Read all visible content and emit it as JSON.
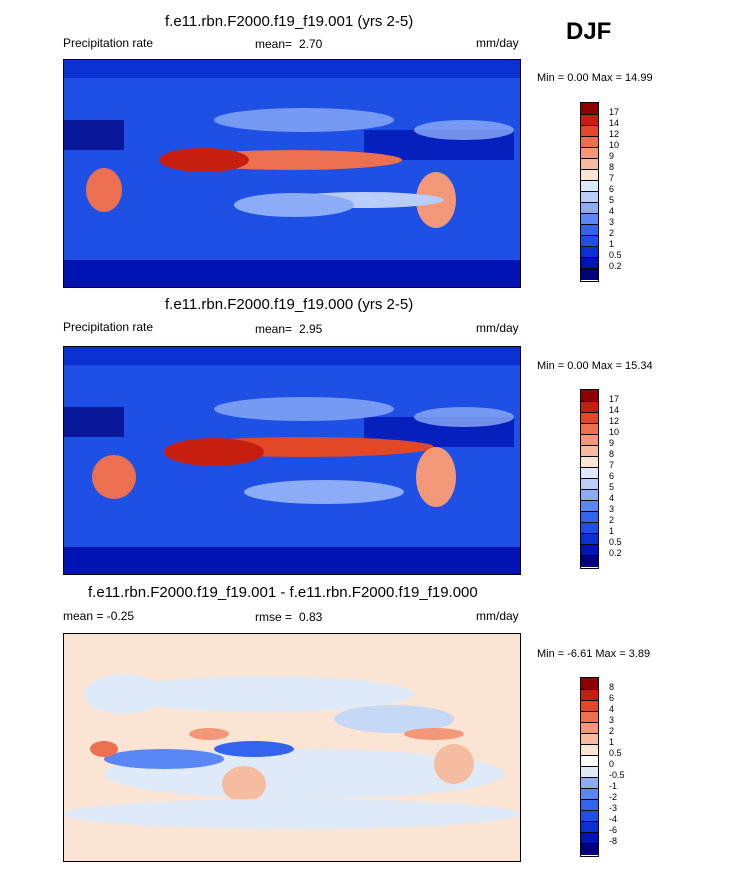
{
  "season": "DJF",
  "panels": [
    {
      "title": "f.e11.rbn.F2000.f19_f19.001 (yrs 2-5)",
      "left_label": "Precipitation rate",
      "mean_label": "mean=",
      "mean_value": "2.70",
      "units": "mm/day",
      "minmax": "Min =   0.00 Max =  14.99",
      "colorbar_labels": [
        "17",
        "14",
        "12",
        "10",
        "9",
        "8",
        "7",
        "6",
        "5",
        "4",
        "3",
        "2",
        "1",
        "0.5",
        "0.2"
      ]
    },
    {
      "title": "f.e11.rbn.F2000.f19_f19.000 (yrs 2-5)",
      "left_label": "Precipitation rate",
      "mean_label": "mean=",
      "mean_value": "2.95",
      "units": "mm/day",
      "minmax": "Min =   0.00 Max =  15.34",
      "colorbar_labels": [
        "17",
        "14",
        "12",
        "10",
        "9",
        "8",
        "7",
        "6",
        "5",
        "4",
        "3",
        "2",
        "1",
        "0.5",
        "0.2"
      ]
    },
    {
      "title": "f.e11.rbn.F2000.f19_f19.001 - f.e11.rbn.F2000.f19_f19.000",
      "left_label": "mean =  -0.25",
      "mean_label": "rmse =",
      "mean_value": "0.83",
      "units": "mm/day",
      "minmax": "Min =  -6.61 Max =   3.89",
      "colorbar_labels": [
        "8",
        "6",
        "4",
        "3",
        "2",
        "1",
        "0.5",
        "0",
        "-0.5",
        "-1",
        "-2",
        "-3",
        "-4",
        "-6",
        "-8"
      ]
    }
  ],
  "chart_data": [
    {
      "type": "heatmap",
      "title": "f.e11.rbn.F2000.f19_f19.001 (yrs 2-5)",
      "variable": "Precipitation rate",
      "units": "mm/day",
      "mean": 2.7,
      "min": 0.0,
      "max": 14.99,
      "levels": [
        0.2,
        0.5,
        1,
        2,
        3,
        4,
        5,
        6,
        7,
        8,
        9,
        10,
        12,
        14,
        17
      ],
      "colors": [
        "#00007a",
        "#0014b4",
        "#0a32d2",
        "#1e50e6",
        "#3264f0",
        "#5a87f5",
        "#8cacf7",
        "#b9cdf9",
        "#dde8fb",
        "#fbe4d4",
        "#f6bca0",
        "#f29878",
        "#ec7050",
        "#e24828",
        "#c81e10",
        "#8c0000"
      ]
    },
    {
      "type": "heatmap",
      "title": "f.e11.rbn.F2000.f19_f19.000 (yrs 2-5)",
      "variable": "Precipitation rate",
      "units": "mm/day",
      "mean": 2.95,
      "min": 0.0,
      "max": 15.34,
      "levels": [
        0.2,
        0.5,
        1,
        2,
        3,
        4,
        5,
        6,
        7,
        8,
        9,
        10,
        12,
        14,
        17
      ],
      "colors": [
        "#00007a",
        "#0014b4",
        "#0a32d2",
        "#1e50e6",
        "#3264f0",
        "#5a87f5",
        "#8cacf7",
        "#b9cdf9",
        "#dde8fb",
        "#fbe4d4",
        "#f6bca0",
        "#f29878",
        "#ec7050",
        "#e24828",
        "#c81e10",
        "#8c0000"
      ]
    },
    {
      "type": "heatmap",
      "title": "f.e11.rbn.F2000.f19_f19.001 - f.e11.rbn.F2000.f19_f19.000",
      "units": "mm/day",
      "mean": -0.25,
      "rmse": 0.83,
      "min": -6.61,
      "max": 3.89,
      "levels": [
        -8,
        -6,
        -4,
        -3,
        -2,
        -1,
        -0.5,
        0,
        0.5,
        1,
        2,
        3,
        4,
        6,
        8
      ],
      "colors": [
        "#00007a",
        "#0014b4",
        "#0a32d2",
        "#1e50e6",
        "#3264f0",
        "#5a87f5",
        "#8cacf7",
        "#c5d8f6",
        "#dfeaf8",
        "#fbe4d4",
        "#f6bca0",
        "#f29878",
        "#ec7050",
        "#e24828",
        "#c81e10",
        "#8c0000"
      ]
    }
  ]
}
